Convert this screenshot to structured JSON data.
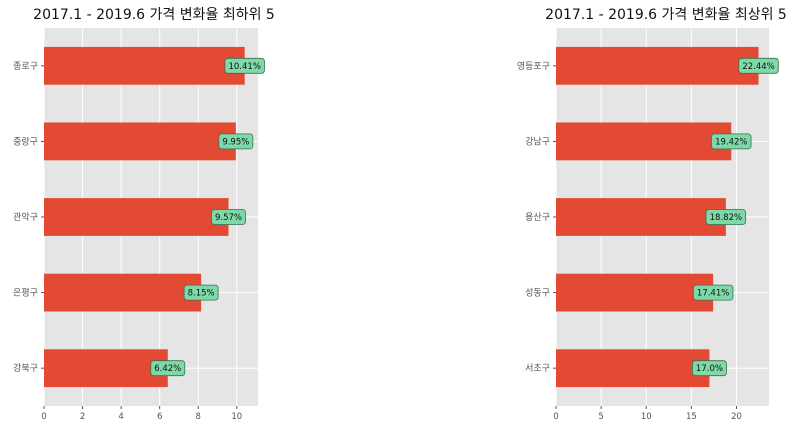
{
  "colors": {
    "plot_bg": "#e5e5e5",
    "grid": "#ffffff",
    "bar": "#e24a33",
    "label_box": "#7fd8a8",
    "label_border": "#3c6e52"
  },
  "chart_data": [
    {
      "type": "bar",
      "orientation": "horizontal",
      "title": "2017.1 - 2019.6 가격 변화율 최하위 5",
      "categories": [
        "종로구",
        "중랑구",
        "관악구",
        "은평구",
        "강북구"
      ],
      "values": [
        10.41,
        9.95,
        9.57,
        8.15,
        6.42
      ],
      "value_labels": [
        "10.41%",
        "9.95%",
        "9.57%",
        "8.15%",
        "6.42%"
      ],
      "xlim": [
        0,
        11.1
      ],
      "xticks": [
        0,
        2,
        4,
        6,
        8,
        10
      ],
      "grid": true
    },
    {
      "type": "bar",
      "orientation": "horizontal",
      "title": "2017.1 - 2019.6 가격 변화율 최상위 5",
      "categories": [
        "영등포구",
        "강남구",
        "용산구",
        "성동구",
        "서초구"
      ],
      "values": [
        22.44,
        19.42,
        18.82,
        17.41,
        17.0
      ],
      "value_labels": [
        "22.44%",
        "19.42%",
        "18.82%",
        "17.41%",
        "17.0%"
      ],
      "xlim": [
        0,
        23.6
      ],
      "xticks": [
        0,
        5,
        10,
        15,
        20
      ],
      "grid": true
    }
  ]
}
